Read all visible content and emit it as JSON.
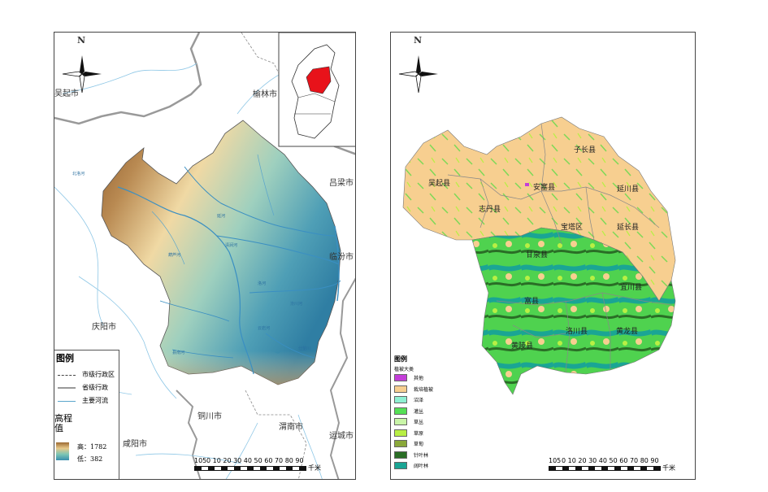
{
  "left_map": {
    "north_label": "N",
    "place_labels": {
      "wuqi_city": "吴起市",
      "yulin": "榆林市",
      "lvliang": "吕梁市",
      "linfen": "临汾市",
      "qingyang": "庆阳市",
      "tongchuan": "铜川市",
      "weinan": "渭南市",
      "xianyang": "咸阳市",
      "yuncheng": "运城市"
    },
    "river_labels": [
      "北洛河",
      "延河",
      "清涧河",
      "洛河",
      "葫芦河",
      "汾川河",
      "云岩河",
      "仕望川",
      "县南河"
    ],
    "legend": {
      "title": "图例",
      "items": [
        "市级行政区",
        "省级行政",
        "主要河流"
      ],
      "elevation_title": "高程值",
      "high": "高：1782",
      "low": "低：382"
    },
    "scale_label": "0  10 20 30 40 50 60 70 80 90",
    "scale_start": "105",
    "scale_unit": "千米"
  },
  "right_map": {
    "north_label": "N",
    "county_labels": {
      "zichang": "子长县",
      "wuqi": "吴起县",
      "ansai": "安塞县",
      "zhidan": "志丹县",
      "yanchuan": "延川县",
      "baota": "宝塔区",
      "yanchang": "延长县",
      "ganquan": "甘泉县",
      "yichuan": "宜川县",
      "fu": "富县",
      "luochuan": "洛川县",
      "huanglong": "黄龙县",
      "huangling": "黄陵县"
    },
    "legend": {
      "title": "图例",
      "subtitle": "植被大类",
      "items": [
        {
          "label": "其他",
          "color": "#c43ed9"
        },
        {
          "label": "栽培植被",
          "color": "#f7cf90"
        },
        {
          "label": "沼泽",
          "color": "#8ff0d2"
        },
        {
          "label": "灌丛",
          "color": "#55e055"
        },
        {
          "label": "草丛",
          "color": "#c9f5a8"
        },
        {
          "label": "草原",
          "color": "#b8ef44"
        },
        {
          "label": "草甸",
          "color": "#8aa83a"
        },
        {
          "label": "针叶林",
          "color": "#2a6e26"
        },
        {
          "label": "阔叶林",
          "color": "#1aa594"
        }
      ]
    },
    "scale_label": "0  10 20 30 40 50 60 70 80 90",
    "scale_start": "105",
    "scale_unit": "千米"
  }
}
